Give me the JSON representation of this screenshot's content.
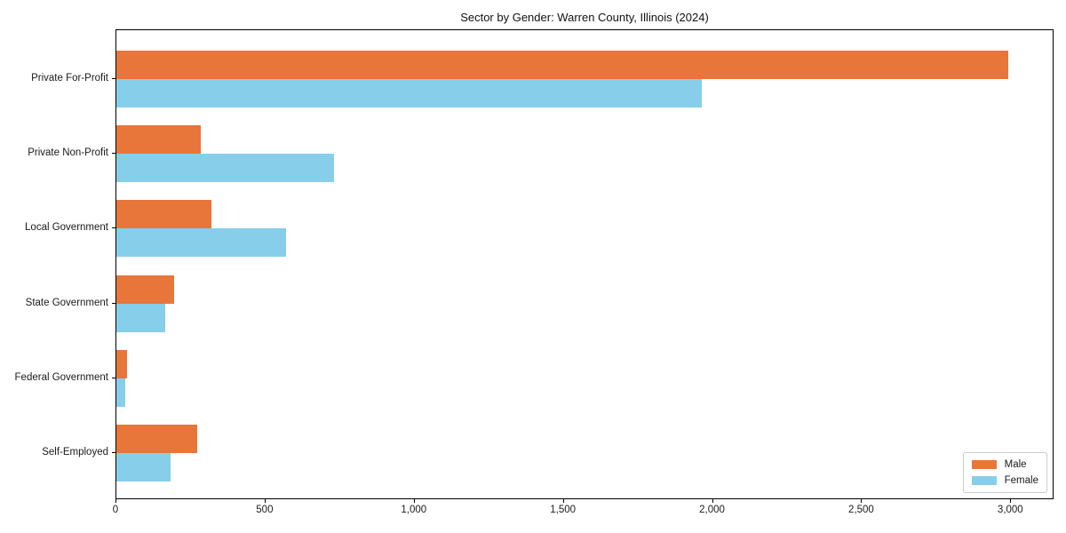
{
  "chart_data": {
    "type": "bar",
    "orientation": "horizontal",
    "title": "Sector by Gender: Warren County, Illinois (2024)",
    "categories": [
      "Private For-Profit",
      "Private Non-Profit",
      "Local Government",
      "State Government",
      "Federal Government",
      "Self-Employed"
    ],
    "series": [
      {
        "name": "Male",
        "color": "#e8763b",
        "values": [
          2990,
          283,
          320,
          194,
          35,
          270
        ]
      },
      {
        "name": "Female",
        "color": "#87ceeb",
        "values": [
          1963,
          731,
          568,
          164,
          31,
          182
        ]
      }
    ],
    "xlabel": "",
    "ylabel": "",
    "xlim": [
      0,
      3139
    ],
    "x_ticks": [
      0,
      500,
      1000,
      1500,
      2000,
      2500,
      3000
    ],
    "x_tick_labels": [
      "0",
      "500",
      "1,000",
      "1,500",
      "2,000",
      "2,500",
      "3,000"
    ],
    "grid": false,
    "legend_position": "lower right",
    "frame": true,
    "background_color": "#ffffff",
    "text_color": "#1a1a1a"
  }
}
